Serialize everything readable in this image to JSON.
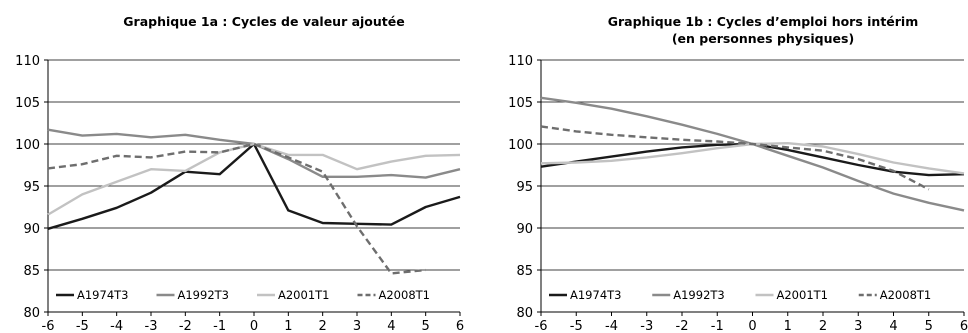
{
  "chart_data": [
    {
      "type": "line",
      "title": "Graphique 1a : Cycles de valeur ajoutée",
      "subtitle": "",
      "x": [
        -6,
        -5,
        -4,
        -3,
        -2,
        -1,
        0,
        1,
        2,
        3,
        4,
        5,
        6
      ],
      "x_tick_labels": [
        "-6",
        "-5",
        "-4",
        "-3",
        "-2",
        "-1",
        "0",
        "1",
        "2",
        "3",
        "4",
        "5",
        "6"
      ],
      "ylim": [
        80,
        110
      ],
      "y_ticks": [
        80,
        85,
        90,
        95,
        100,
        105,
        110
      ],
      "y_tick_labels": [
        "80",
        "85",
        "90",
        "95",
        "100",
        "105",
        "110"
      ],
      "grid": "horizontal",
      "legend": "bottom",
      "series": [
        {
          "name": "A1974T3",
          "color": "#1a1a1a",
          "style": "solid",
          "values": [
            89.9,
            91.1,
            92.4,
            94.2,
            96.7,
            96.4,
            100.0,
            92.1,
            90.6,
            90.5,
            90.4,
            92.5,
            93.7
          ]
        },
        {
          "name": "A1992T3",
          "color": "#8a8a8a",
          "style": "solid",
          "values": [
            101.7,
            101.0,
            101.2,
            100.8,
            101.1,
            100.5,
            100.0,
            98.2,
            96.1,
            96.1,
            96.3,
            96.0,
            97.0
          ]
        },
        {
          "name": "A2001T1",
          "color": "#c2c2c2",
          "style": "solid",
          "values": [
            91.6,
            94.0,
            95.5,
            97.0,
            96.8,
            99.0,
            100.0,
            98.7,
            98.7,
            97.0,
            97.9,
            98.6,
            98.7
          ]
        },
        {
          "name": "A2008T1",
          "color": "#6e6e6e",
          "style": "dashed",
          "values": [
            97.1,
            97.6,
            98.6,
            98.4,
            99.1,
            99.0,
            100.0,
            98.4,
            96.7,
            90.2,
            84.6,
            85.0,
            null
          ]
        }
      ]
    },
    {
      "type": "line",
      "title": "Graphique 1b : Cycles d’emploi hors intérim",
      "subtitle": "(en personnes physiques)",
      "x": [
        -6,
        -5,
        -4,
        -3,
        -2,
        -1,
        0,
        1,
        2,
        3,
        4,
        5,
        6
      ],
      "x_tick_labels": [
        "-6",
        "-5",
        "-4",
        "-3",
        "-2",
        "-1",
        "0",
        "1",
        "2",
        "3",
        "4",
        "5",
        "6"
      ],
      "ylim": [
        80,
        110
      ],
      "y_ticks": [
        80,
        85,
        90,
        95,
        100,
        105,
        110
      ],
      "y_tick_labels": [
        "80",
        "85",
        "90",
        "95",
        "100",
        "105",
        "110"
      ],
      "grid": "horizontal",
      "legend": "bottom",
      "series": [
        {
          "name": "A1974T3",
          "color": "#1a1a1a",
          "style": "solid",
          "values": [
            97.3,
            97.9,
            98.5,
            99.1,
            99.6,
            99.9,
            100.0,
            99.3,
            98.4,
            97.5,
            96.7,
            96.3,
            96.4
          ]
        },
        {
          "name": "A1992T3",
          "color": "#8a8a8a",
          "style": "solid",
          "values": [
            105.5,
            104.9,
            104.2,
            103.3,
            102.3,
            101.2,
            100.0,
            98.6,
            97.2,
            95.6,
            94.1,
            93.0,
            92.1
          ]
        },
        {
          "name": "A2001T1",
          "color": "#c2c2c2",
          "style": "solid",
          "values": [
            97.7,
            97.8,
            98.0,
            98.4,
            98.9,
            99.5,
            100.0,
            100.1,
            99.7,
            98.8,
            97.8,
            97.1,
            96.5
          ]
        },
        {
          "name": "A2008T1",
          "color": "#6e6e6e",
          "style": "dashed",
          "values": [
            102.1,
            101.5,
            101.1,
            100.8,
            100.5,
            100.3,
            100.0,
            99.6,
            99.2,
            98.2,
            96.8,
            94.6,
            null
          ]
        }
      ]
    }
  ]
}
